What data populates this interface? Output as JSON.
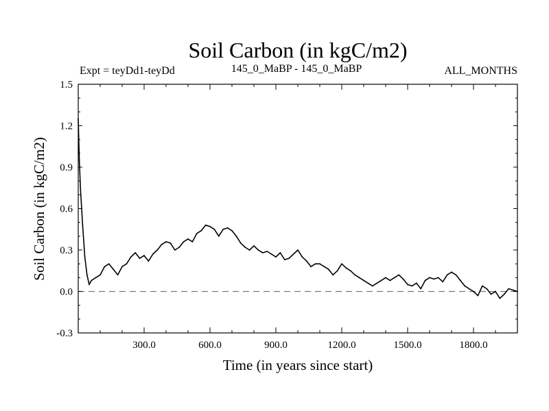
{
  "chart_data": {
    "type": "line",
    "title": "Soil Carbon (in kgC/m2)",
    "subtitle_left": "Expt = teyDd1-teyDd",
    "subtitle_center": "145_0_MaBP - 145_0_MaBP",
    "subtitle_right": "ALL_MONTHS",
    "xlabel": "Time (in years since start)",
    "ylabel": "Soil Carbon (in kgC/m2)",
    "xlim": [
      0,
      2000
    ],
    "ylim": [
      -0.3,
      1.5
    ],
    "x_ticks": [
      300,
      600,
      900,
      1200,
      1500,
      1800
    ],
    "x_tick_labels": [
      "300.0",
      "600.0",
      "900.0",
      "1200.0",
      "1500.0",
      "1800.0"
    ],
    "y_ticks": [
      -0.3,
      0.0,
      0.3,
      0.6,
      0.9,
      1.2,
      1.5
    ],
    "y_tick_labels": [
      "-0.3",
      "0.0",
      "0.3",
      "0.6",
      "0.9",
      "1.2",
      "1.5"
    ],
    "reference_line": {
      "y": 0.0,
      "style": "dashed",
      "color": "#777777"
    },
    "series": [
      {
        "name": "Soil Carbon",
        "color": "#000000",
        "x": [
          0,
          5,
          10,
          20,
          30,
          40,
          50,
          60,
          80,
          100,
          120,
          140,
          160,
          180,
          200,
          220,
          240,
          260,
          280,
          300,
          320,
          340,
          360,
          380,
          400,
          420,
          440,
          460,
          480,
          500,
          520,
          540,
          560,
          580,
          600,
          620,
          640,
          660,
          680,
          700,
          720,
          740,
          760,
          780,
          800,
          820,
          840,
          860,
          880,
          900,
          920,
          940,
          960,
          980,
          1000,
          1020,
          1040,
          1060,
          1080,
          1100,
          1120,
          1140,
          1160,
          1180,
          1200,
          1220,
          1240,
          1260,
          1280,
          1300,
          1320,
          1340,
          1360,
          1380,
          1400,
          1420,
          1440,
          1460,
          1480,
          1500,
          1520,
          1540,
          1560,
          1580,
          1600,
          1620,
          1640,
          1660,
          1680,
          1700,
          1720,
          1740,
          1760,
          1780,
          1800,
          1820,
          1840,
          1860,
          1880,
          1900,
          1920,
          1940,
          1960,
          1980,
          2000
        ],
        "values": [
          1.25,
          0.95,
          0.75,
          0.48,
          0.25,
          0.12,
          0.05,
          0.08,
          0.1,
          0.12,
          0.18,
          0.2,
          0.16,
          0.12,
          0.18,
          0.2,
          0.25,
          0.28,
          0.24,
          0.26,
          0.22,
          0.27,
          0.3,
          0.34,
          0.36,
          0.35,
          0.3,
          0.32,
          0.36,
          0.38,
          0.36,
          0.42,
          0.44,
          0.48,
          0.47,
          0.45,
          0.4,
          0.45,
          0.46,
          0.44,
          0.4,
          0.35,
          0.32,
          0.3,
          0.33,
          0.3,
          0.28,
          0.29,
          0.27,
          0.25,
          0.28,
          0.23,
          0.24,
          0.27,
          0.3,
          0.25,
          0.22,
          0.18,
          0.2,
          0.2,
          0.18,
          0.16,
          0.12,
          0.15,
          0.2,
          0.17,
          0.15,
          0.12,
          0.1,
          0.08,
          0.06,
          0.04,
          0.06,
          0.08,
          0.1,
          0.08,
          0.1,
          0.12,
          0.09,
          0.05,
          0.04,
          0.06,
          0.02,
          0.08,
          0.1,
          0.09,
          0.1,
          0.07,
          0.12,
          0.14,
          0.12,
          0.08,
          0.04,
          0.02,
          0.0,
          -0.03,
          0.04,
          0.02,
          -0.02,
          0.0,
          -0.05,
          -0.02,
          0.02,
          0.01,
          0.0
        ]
      }
    ]
  }
}
